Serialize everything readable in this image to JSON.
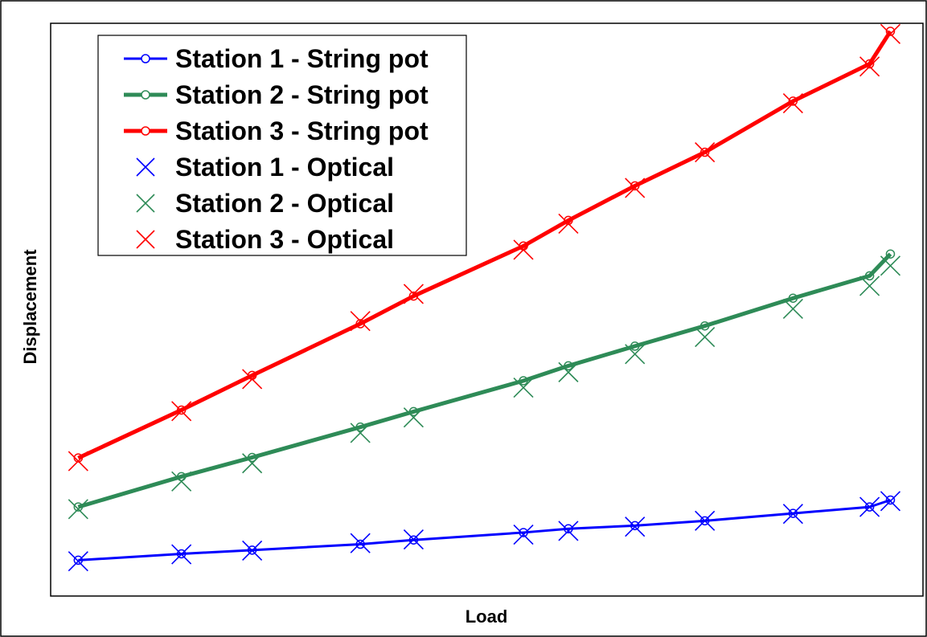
{
  "chart_data": {
    "type": "line",
    "title": "",
    "xlabel": "Load",
    "ylabel": "Displacement",
    "grid": false,
    "legend_position": "top-left",
    "xlim": [
      0,
      1
    ],
    "ylim": [
      0,
      1
    ],
    "series": [
      {
        "name": "Station 1 - String pot",
        "kind": "line",
        "color": "#0000ff",
        "marker": "circle",
        "x": [
          0.009,
          0.133,
          0.218,
          0.348,
          0.412,
          0.544,
          0.598,
          0.678,
          0.762,
          0.868,
          0.96,
          0.985
        ],
        "y": [
          0.022,
          0.034,
          0.041,
          0.052,
          0.06,
          0.074,
          0.081,
          0.087,
          0.096,
          0.11,
          0.122,
          0.135
        ]
      },
      {
        "name": "Station 2 - String pot",
        "kind": "line",
        "color": "#2e8b57",
        "marker": "circle",
        "x": [
          0.009,
          0.133,
          0.218,
          0.348,
          0.412,
          0.544,
          0.598,
          0.678,
          0.762,
          0.868,
          0.96,
          0.985
        ],
        "y": [
          0.122,
          0.179,
          0.215,
          0.272,
          0.301,
          0.359,
          0.387,
          0.424,
          0.462,
          0.514,
          0.556,
          0.597
        ]
      },
      {
        "name": "Station 3 - String pot",
        "kind": "line",
        "color": "#ff0000",
        "marker": "circle",
        "x": [
          0.009,
          0.133,
          0.218,
          0.348,
          0.412,
          0.544,
          0.598,
          0.678,
          0.762,
          0.868,
          0.96,
          0.985
        ],
        "y": [
          0.214,
          0.304,
          0.369,
          0.466,
          0.518,
          0.612,
          0.66,
          0.725,
          0.788,
          0.884,
          0.954,
          1.015
        ]
      },
      {
        "name": "Station 1 - Optical",
        "kind": "marker",
        "color": "#0000ff",
        "marker": "x",
        "x": [
          0.009,
          0.133,
          0.218,
          0.348,
          0.412,
          0.544,
          0.598,
          0.678,
          0.762,
          0.868,
          0.96,
          0.985
        ],
        "y": [
          0.02,
          0.033,
          0.04,
          0.054,
          0.061,
          0.07,
          0.077,
          0.085,
          0.096,
          0.109,
          0.122,
          0.133
        ]
      },
      {
        "name": "Station 2 - Optical",
        "kind": "marker",
        "color": "#2e8b57",
        "marker": "x",
        "x": [
          0.009,
          0.133,
          0.218,
          0.348,
          0.412,
          0.544,
          0.598,
          0.678,
          0.762,
          0.868,
          0.96,
          0.985
        ],
        "y": [
          0.118,
          0.17,
          0.204,
          0.261,
          0.29,
          0.346,
          0.375,
          0.409,
          0.441,
          0.494,
          0.537,
          0.575
        ]
      },
      {
        "name": "Station 3 - Optical",
        "kind": "marker",
        "color": "#ff0000",
        "marker": "x",
        "x": [
          0.009,
          0.133,
          0.218,
          0.348,
          0.412,
          0.544,
          0.598,
          0.678,
          0.762,
          0.868,
          0.96,
          0.985
        ],
        "y": [
          0.208,
          0.302,
          0.362,
          0.471,
          0.522,
          0.605,
          0.654,
          0.721,
          0.788,
          0.88,
          0.949,
          1.01
        ]
      }
    ]
  }
}
